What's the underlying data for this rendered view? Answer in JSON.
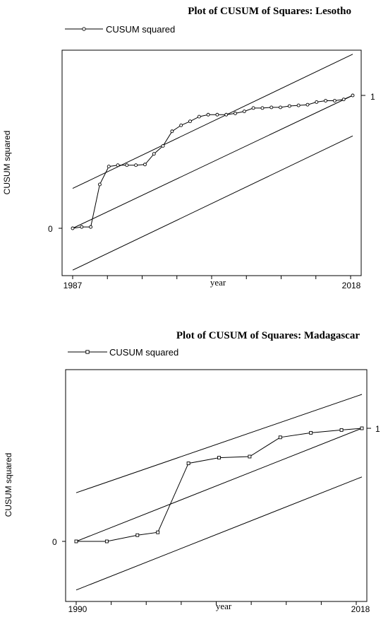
{
  "chart_data": [
    {
      "type": "line",
      "title": "Plot of CUSUM of Squares: Lesotho",
      "legend": "CUSUM squared",
      "legend_marker": "circle",
      "ylabel": "CUSUM squared",
      "xlabel": "year",
      "x_tick_labels": [
        "1987",
        "2018"
      ],
      "y_tick_labels": [
        "0",
        "1"
      ],
      "xlim": [
        1987,
        2018
      ],
      "ylim": [
        -0.315,
        1.31
      ],
      "series": [
        {
          "x": [
            1987,
            1988,
            1989,
            1990,
            1991,
            1992,
            1993,
            1994,
            1995,
            1996,
            1997,
            1998,
            1999,
            2000,
            2001,
            2002,
            2003,
            2004,
            2005,
            2006,
            2007,
            2008,
            2009,
            2010,
            2011,
            2012,
            2013,
            2014,
            2015,
            2016,
            2017,
            2018
          ],
          "values": [
            0,
            0.01,
            0.01,
            0.33,
            0.465,
            0.475,
            0.475,
            0.475,
            0.48,
            0.56,
            0.62,
            0.73,
            0.775,
            0.805,
            0.84,
            0.855,
            0.855,
            0.855,
            0.865,
            0.88,
            0.905,
            0.905,
            0.91,
            0.91,
            0.92,
            0.925,
            0.93,
            0.95,
            0.96,
            0.96,
            0.97,
            1.0
          ]
        }
      ],
      "boundaries": [
        {
          "x": [
            1987,
            2018
          ],
          "values": [
            0.3,
            1.31
          ]
        },
        {
          "x": [
            1987,
            2018
          ],
          "values": [
            0,
            1
          ]
        },
        {
          "x": [
            1987,
            2018
          ],
          "values": [
            -0.315,
            0.695
          ]
        }
      ]
    },
    {
      "type": "line",
      "title": "Plot of CUSUM of Squares: Madagascar",
      "legend": "CUSUM squared",
      "legend_marker": "square",
      "ylabel": "CUSUM squared",
      "xlabel": "year",
      "x_tick_labels": [
        "1990",
        "2018"
      ],
      "y_tick_labels": [
        "0",
        "1"
      ],
      "xlim": [
        1990,
        2018
      ],
      "ylim": [
        -0.43,
        1.3
      ],
      "series": [
        {
          "x": [
            1990,
            1993,
            1996,
            1998,
            2001,
            2004,
            2007,
            2010,
            2013,
            2016,
            2018
          ],
          "values": [
            0,
            0,
            0.055,
            0.08,
            0.69,
            0.74,
            0.75,
            0.92,
            0.96,
            0.985,
            1.0
          ]
        }
      ],
      "boundaries": [
        {
          "x": [
            1990,
            2018
          ],
          "values": [
            0.43,
            1.3
          ]
        },
        {
          "x": [
            1990,
            2018
          ],
          "values": [
            0,
            1
          ]
        },
        {
          "x": [
            1990,
            2018
          ],
          "values": [
            -0.43,
            0.57
          ]
        }
      ]
    }
  ]
}
